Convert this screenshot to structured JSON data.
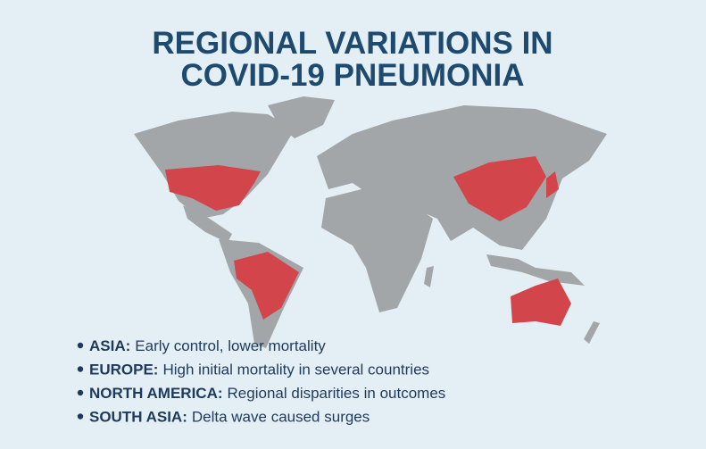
{
  "title": {
    "lines": [
      "REGIONAL VARIATIONS IN",
      "COVID-19 PNEUMONIA"
    ]
  },
  "bullets": [
    {
      "label": "ASIA:",
      "text": "Early control, lower mortality"
    },
    {
      "label": "EUROPE:",
      "text": "High initial mortality in several countries"
    },
    {
      "label": "NORTH AMERICA:",
      "text": "Regional disparities in outcomes"
    },
    {
      "label": "SOUTH ASIA:",
      "text": "Delta wave caused surges"
    }
  ]
}
